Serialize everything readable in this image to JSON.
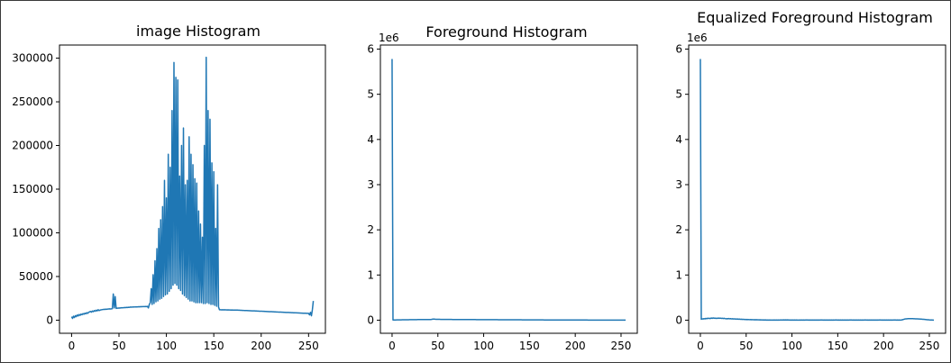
{
  "chart_data": [
    {
      "type": "line",
      "title": "image Histogram",
      "xlabel": "",
      "ylabel": "",
      "xlim": [
        -12.75,
        267.75
      ],
      "ylim": [
        -15000,
        315000
      ],
      "y_scale_label": "",
      "xticks": [
        0,
        50,
        100,
        150,
        200,
        250
      ],
      "yticks": [
        0,
        50000,
        100000,
        150000,
        200000,
        250000,
        300000
      ],
      "ytick_labels": [
        "0",
        "50000",
        "100000",
        "150000",
        "200000",
        "250000",
        "300000"
      ],
      "color": "#1f77b4",
      "series": [
        {
          "values": [
            4000,
            2000,
            4500,
            3000,
            5200,
            4000,
            6000,
            4800,
            6500,
            5500,
            7000,
            6200,
            7500,
            6800,
            8000,
            7300,
            8600,
            7800,
            9000,
            9500,
            10000,
            9200,
            10500,
            9800,
            11000,
            10200,
            11500,
            10600,
            12000,
            11000,
            11500,
            11800,
            12000,
            12200,
            12400,
            12300,
            12600,
            12500,
            12700,
            12800,
            13000,
            12900,
            13000,
            13200,
            30000,
            14000,
            27000,
            13500,
            13800,
            13700,
            14000,
            13900,
            14200,
            14100,
            14300,
            14200,
            14500,
            14400,
            14600,
            14500,
            14800,
            14700,
            15000,
            14900,
            15100,
            15000,
            15200,
            15100,
            15300,
            15200,
            15300,
            15400,
            15300,
            15500,
            15400,
            15600,
            15500,
            15600,
            15700,
            15600,
            15800,
            14000,
            18000,
            20000,
            36000,
            18000,
            52000,
            19000,
            68000,
            21000,
            82000,
            22000,
            105000,
            24000,
            115000,
            25000,
            130000,
            27000,
            160000,
            29000,
            140000,
            30000,
            190000,
            33000,
            175000,
            36000,
            240000,
            40000,
            295000,
            42000,
            278000,
            40000,
            275000,
            36000,
            165000,
            34000,
            200000,
            30000,
            220000,
            28000,
            155000,
            26000,
            160000,
            24000,
            210000,
            22000,
            190000,
            22000,
            178000,
            21000,
            162000,
            20000,
            157000,
            20000,
            125000,
            20000,
            110000,
            20000,
            95000,
            19000,
            200000,
            19000,
            301000,
            20000,
            240000,
            19000,
            230000,
            18000,
            180000,
            18000,
            170000,
            17000,
            105000,
            16000,
            155000,
            15000,
            12000,
            11900,
            11800,
            11900,
            11800,
            11900,
            11800,
            11800,
            11700,
            11800,
            11700,
            11700,
            11600,
            11700,
            11600,
            11600,
            11500,
            11600,
            11500,
            11500,
            11400,
            11400,
            11300,
            11300,
            11200,
            11200,
            11100,
            11100,
            11000,
            11000,
            10900,
            10900,
            10800,
            10800,
            10700,
            10700,
            10600,
            10600,
            10500,
            10500,
            10400,
            10400,
            10300,
            10300,
            10200,
            10200,
            10100,
            10100,
            10000,
            10000,
            9900,
            9900,
            9800,
            9800,
            9700,
            9700,
            9600,
            9600,
            9500,
            9500,
            9400,
            9400,
            9300,
            9300,
            9200,
            9200,
            9100,
            9100,
            9000,
            9000,
            8900,
            8900,
            8800,
            8800,
            8700,
            8700,
            8600,
            8600,
            8500,
            8500,
            8400,
            8400,
            8300,
            8300,
            8200,
            8200,
            8100,
            8100,
            8000,
            8000,
            7900,
            7900,
            7800,
            7800,
            7800,
            6000,
            9000,
            5000,
            12000,
            22000
          ]
        }
      ]
    },
    {
      "type": "line",
      "title": "Foreground Histogram",
      "xlabel": "",
      "ylabel": "",
      "xlim": [
        -12.75,
        267.75
      ],
      "ylim": [
        -290000,
        6090000
      ],
      "y_scale_label": "1e6",
      "xticks": [
        0,
        50,
        100,
        150,
        200,
        250
      ],
      "yticks": [
        0,
        1000000,
        2000000,
        3000000,
        4000000,
        5000000,
        6000000
      ],
      "ytick_labels": [
        "0",
        "1",
        "2",
        "3",
        "4",
        "5",
        "6"
      ],
      "color": "#1f77b4",
      "series": [
        {
          "values": [
            5780000,
            4000,
            4500,
            5000,
            5200,
            5500,
            5800,
            6200,
            6500,
            7000,
            7400,
            7800,
            8200,
            8600,
            9000,
            9300,
            9600,
            10000,
            10300,
            10600,
            10900,
            11200,
            11500,
            11800,
            12000,
            12200,
            12400,
            12600,
            12800,
            13000,
            13100,
            13200,
            13300,
            13400,
            13500,
            13600,
            13700,
            13800,
            13900,
            14000,
            14200,
            14500,
            15000,
            16000,
            22000,
            24000,
            25000,
            22000,
            20000,
            19000,
            18500,
            18000,
            17800,
            17600,
            17400,
            17200,
            17000,
            16800,
            16600,
            16400,
            16200,
            16000,
            15800,
            15600,
            15500,
            15400,
            15300,
            15200,
            15100,
            15000,
            14900,
            14800,
            14700,
            14600,
            14500,
            14400,
            14300,
            14200,
            14100,
            14000,
            13900,
            13800,
            13700,
            13600,
            13500,
            13400,
            13300,
            13200,
            13100,
            13000,
            12900,
            12800,
            12700,
            12600,
            12500,
            12400,
            12300,
            12200,
            12100,
            12000,
            11900,
            11800,
            11700,
            11600,
            11500,
            11400,
            11300,
            11200,
            11100,
            11000,
            10900,
            10800,
            10700,
            10600,
            10500,
            10400,
            10300,
            10200,
            10100,
            10000,
            9900,
            9800,
            9700,
            9600,
            9500,
            9400,
            9300,
            9200,
            9100,
            9000,
            8900,
            8800,
            8700,
            8600,
            8500,
            8400,
            8300,
            8200,
            8100,
            8000,
            7900,
            7800,
            7700,
            7600,
            7500,
            7400,
            7300,
            7200,
            7100,
            7000,
            6900,
            6800,
            6700,
            6600,
            6500,
            6400,
            6300,
            6200,
            6100,
            6000,
            5900,
            5800,
            5700,
            5600,
            5500,
            5400,
            5300,
            5200,
            5100,
            5000,
            4950,
            4900,
            4850,
            4800,
            4750,
            4700,
            4650,
            4600,
            4550,
            4500,
            4450,
            4400,
            4350,
            4300,
            4250,
            4200,
            4150,
            4100,
            4050,
            4000,
            3950,
            3900,
            3850,
            3800,
            3750,
            3700,
            3650,
            3600,
            3550,
            3500,
            3450,
            3400,
            3350,
            3300,
            3250,
            3200,
            3150,
            3100,
            3050,
            3000,
            2950,
            2900,
            2850,
            2800,
            2750,
            2700,
            2650,
            2600,
            2550,
            2500,
            2450,
            2400,
            2350,
            2300,
            2250,
            2200,
            2150,
            2100,
            2050,
            2000,
            1950,
            1900,
            1850,
            1800,
            1750,
            1700,
            1650,
            1600,
            1550,
            1500,
            1450,
            1400,
            1350,
            1300,
            1250,
            1200,
            1150,
            1100,
            1050,
            1000,
            950,
            900,
            850,
            800,
            750,
            700
          ]
        }
      ]
    },
    {
      "type": "line",
      "title": "Equalized Foreground Histogram",
      "xlabel": "",
      "ylabel": "",
      "xlim": [
        -12.75,
        267.75
      ],
      "ylim": [
        -290000,
        6090000
      ],
      "y_scale_label": "1e6",
      "xticks": [
        0,
        50,
        100,
        150,
        200,
        250
      ],
      "yticks": [
        0,
        1000000,
        2000000,
        3000000,
        4000000,
        5000000,
        6000000
      ],
      "ytick_labels": [
        "0",
        "1",
        "2",
        "3",
        "4",
        "5",
        "6"
      ],
      "color": "#1f77b4",
      "series": [
        {
          "values": [
            5780000,
            20000,
            30000,
            25000,
            35000,
            28000,
            40000,
            32000,
            45000,
            38000,
            42000,
            36000,
            48000,
            40000,
            50000,
            42000,
            46000,
            38000,
            44000,
            40000,
            47000,
            41000,
            45000,
            39000,
            43000,
            37000,
            41000,
            35000,
            30000,
            34000,
            32000,
            36000,
            30000,
            34000,
            28000,
            32000,
            26000,
            30000,
            24000,
            28000,
            22000,
            26000,
            20000,
            24000,
            18000,
            22000,
            16000,
            20000,
            14000,
            18000,
            12000,
            16000,
            11000,
            15000,
            10000,
            14000,
            9000,
            13000,
            8000,
            12000,
            7000,
            11000,
            6000,
            10000,
            5000,
            9000,
            4000,
            8000,
            3000,
            7000,
            2500,
            6000,
            2000,
            5000,
            1500,
            4500,
            1000,
            4000,
            500,
            3500,
            1000,
            3000,
            1500,
            3500,
            2000,
            4000,
            2500,
            4500,
            3000,
            5000,
            3500,
            5500,
            4000,
            6000,
            3500,
            5500,
            3000,
            5000,
            2500,
            4500,
            2000,
            4000,
            1500,
            3500,
            1000,
            3000,
            500,
            2500,
            1000,
            3000,
            1500,
            3500,
            2000,
            4000,
            2500,
            4500,
            3000,
            5000,
            2500,
            4500,
            2000,
            4000,
            1500,
            3500,
            1000,
            3000,
            1500,
            3500,
            2000,
            4000,
            2500,
            4500,
            3000,
            5000,
            2500,
            4500,
            2000,
            4000,
            1500,
            3500,
            1000,
            3000,
            1500,
            3500,
            2000,
            4000,
            2500,
            4500,
            3000,
            5000,
            2500,
            4500,
            2000,
            4000,
            1500,
            3500,
            1000,
            3000,
            1500,
            3500,
            2000,
            4000,
            2500,
            4500,
            3000,
            5000,
            2500,
            4500,
            2000,
            4000,
            1500,
            3500,
            1000,
            3000,
            1500,
            3500,
            2000,
            4000,
            2500,
            4500,
            3000,
            5000,
            2500,
            4500,
            2000,
            4000,
            1500,
            3500,
            1000,
            3000,
            1500,
            3500,
            2000,
            4000,
            2500,
            4500,
            3000,
            5000,
            2500,
            4500,
            2000,
            4000,
            1500,
            3500,
            1000,
            3000,
            1500,
            3500,
            2000,
            4000,
            2500,
            4500,
            3000,
            5000,
            2500,
            4500,
            2000,
            4000,
            1500,
            3500,
            6000,
            12000,
            18000,
            24000,
            28000,
            30000,
            32000,
            33000,
            34000,
            35000,
            35000,
            34000,
            33000,
            32000,
            31000,
            30000,
            29000,
            28000,
            27000,
            26000,
            25000,
            24000,
            22000,
            20000,
            18000,
            16000,
            14000,
            12000,
            10000,
            8000,
            6000,
            5000,
            4000,
            3000,
            2000,
            1000
          ]
        }
      ]
    }
  ]
}
